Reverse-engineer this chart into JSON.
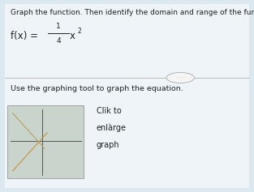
{
  "title_line": "Graph the function. Then identify the domain and range of the function.",
  "subtext": "Use the graphing tool to graph the equation.",
  "btn_line1": "Clïk to",
  "btn_line2": "enlàrge",
  "btn_line3": "graph",
  "bg_color": "#dce8f0",
  "panel_color": "#eef4f8",
  "title_fontsize": 6.5,
  "formula_fontsize": 8.5,
  "subtext_fontsize": 6.8,
  "btn_fontsize": 7.0,
  "text_color": "#222222",
  "divider_color": "#bbbbbb",
  "ellipse_fill": "#f5f5f5",
  "ellipse_edge": "#aaaaaa",
  "thumb_fill": "#c8d4cc",
  "thumb_edge": "#999999",
  "axis_color": "#555555",
  "line1_color": "#b8a060",
  "line2_color": "#c89040"
}
